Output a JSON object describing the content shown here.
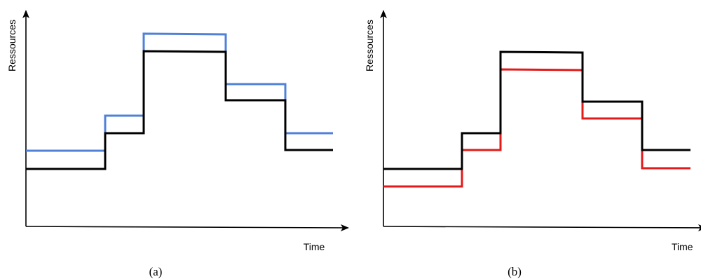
{
  "panels": [
    {
      "y_label": "Ressources",
      "x_label": "Time",
      "caption": "(a)"
    },
    {
      "y_label": "Ressources",
      "x_label": "Time",
      "caption": "(b)"
    }
  ]
}
